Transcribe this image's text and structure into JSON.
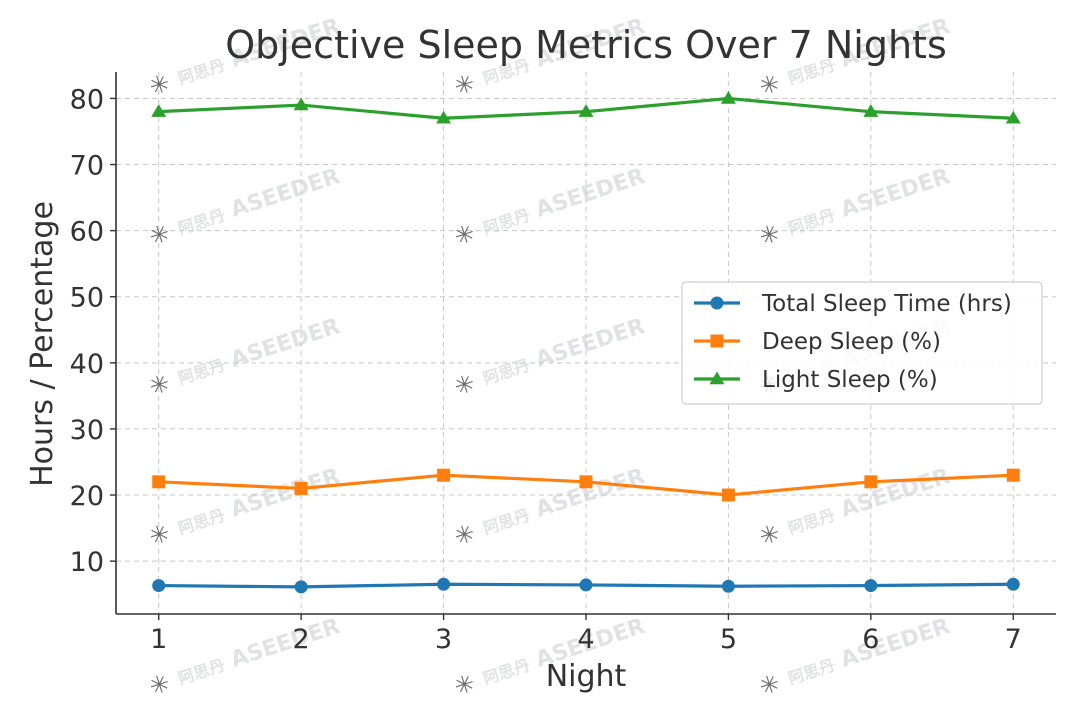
{
  "chart_data": {
    "type": "line",
    "title": "Objective Sleep Metrics Over 7 Nights",
    "xlabel": "Night",
    "ylabel": "Hours / Percentage",
    "x": [
      1,
      2,
      3,
      4,
      5,
      6,
      7
    ],
    "x_ticks": [
      "1",
      "2",
      "3",
      "4",
      "5",
      "6",
      "7"
    ],
    "ylim": [
      2,
      84
    ],
    "y_ticks": [
      "10",
      "20",
      "30",
      "40",
      "50",
      "60",
      "70",
      "80"
    ],
    "grid": true,
    "legend_position": "center-right",
    "series": [
      {
        "name": "Total Sleep Time (hrs)",
        "values": [
          6.3,
          6.1,
          6.5,
          6.4,
          6.2,
          6.3,
          6.5
        ],
        "color": "#1f77b4",
        "marker": "circle"
      },
      {
        "name": "Deep Sleep (%)",
        "values": [
          22,
          21,
          23,
          22,
          20,
          22,
          23
        ],
        "color": "#ff7f0e",
        "marker": "square"
      },
      {
        "name": "Light Sleep (%)",
        "values": [
          78,
          79,
          77,
          78,
          80,
          78,
          77
        ],
        "color": "#2ca02c",
        "marker": "triangle"
      }
    ]
  },
  "watermark": {
    "text": "ASEEDER",
    "cn": "阿思丹"
  }
}
